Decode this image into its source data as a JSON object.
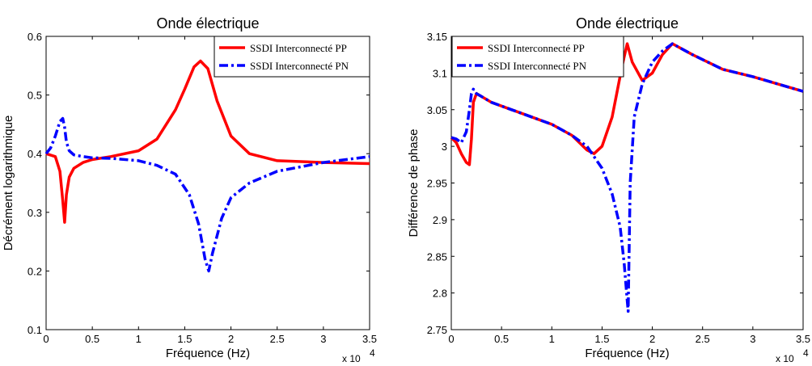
{
  "chart_data": [
    {
      "type": "line",
      "title": "Onde électrique",
      "xlabel": "Fréquence (Hz)",
      "ylabel": "Décrément logarithmique",
      "x_multiplier": "x 10",
      "x_multiplier_exp": "4",
      "xlim": [
        0,
        3.5
      ],
      "ylim": [
        0.1,
        0.6
      ],
      "xticks": [
        0,
        0.5,
        1,
        1.5,
        2,
        2.5,
        3,
        3.5
      ],
      "xtick_labels": [
        "0",
        "0.5",
        "1",
        "1.5",
        "2",
        "2.5",
        "3",
        "3.5"
      ],
      "yticks": [
        0.1,
        0.2,
        0.3,
        0.4,
        0.5,
        0.6
      ],
      "ytick_labels": [
        "0.1",
        "0.2",
        "0.3",
        "0.4",
        "0.5",
        "0.6"
      ],
      "legend_position": "top-right",
      "series": [
        {
          "name": "SSDI Interconnecté PP",
          "color": "#ff0000",
          "style": "solid",
          "x": [
            0,
            0.1,
            0.15,
            0.18,
            0.2,
            0.22,
            0.25,
            0.3,
            0.4,
            0.5,
            0.7,
            1.0,
            1.2,
            1.4,
            1.5,
            1.6,
            1.67,
            1.75,
            1.85,
            2.0,
            2.2,
            2.5,
            3.0,
            3.5
          ],
          "y": [
            0.4,
            0.395,
            0.37,
            0.32,
            0.283,
            0.33,
            0.36,
            0.375,
            0.385,
            0.39,
            0.395,
            0.405,
            0.425,
            0.475,
            0.51,
            0.548,
            0.558,
            0.545,
            0.49,
            0.43,
            0.4,
            0.388,
            0.385,
            0.383
          ]
        },
        {
          "name": "SSDI Interconnecté PN",
          "color": "#0000ff",
          "style": "dashdot",
          "x": [
            0,
            0.05,
            0.1,
            0.15,
            0.18,
            0.2,
            0.22,
            0.25,
            0.3,
            0.4,
            0.5,
            0.7,
            1.0,
            1.2,
            1.4,
            1.55,
            1.65,
            1.72,
            1.76,
            1.8,
            1.9,
            2.0,
            2.2,
            2.5,
            3.0,
            3.5
          ],
          "y": [
            0.4,
            0.41,
            0.43,
            0.455,
            0.46,
            0.445,
            0.42,
            0.405,
            0.398,
            0.395,
            0.393,
            0.392,
            0.388,
            0.38,
            0.365,
            0.33,
            0.28,
            0.22,
            0.2,
            0.23,
            0.29,
            0.325,
            0.35,
            0.37,
            0.385,
            0.395
          ]
        }
      ]
    },
    {
      "type": "line",
      "title": "Onde électrique",
      "xlabel": "Fréquence (Hz)",
      "ylabel": "Différence de phase",
      "x_multiplier": "x 10",
      "x_multiplier_exp": "4",
      "xlim": [
        0,
        3.5
      ],
      "ylim": [
        2.75,
        3.15
      ],
      "xticks": [
        0,
        0.5,
        1,
        1.5,
        2,
        2.5,
        3,
        3.5
      ],
      "xtick_labels": [
        "0",
        "0.5",
        "1",
        "1.5",
        "2",
        "2.5",
        "3",
        "3.5"
      ],
      "yticks": [
        2.75,
        2.8,
        2.85,
        2.9,
        2.95,
        3.0,
        3.05,
        3.1,
        3.15
      ],
      "ytick_labels": [
        "2.75",
        "2.8",
        "2.85",
        "2.9",
        "2.95",
        "3",
        "3.05",
        "3.1",
        "3.15"
      ],
      "legend_position": "top-left",
      "series": [
        {
          "name": "SSDI Interconnecté PP",
          "color": "#ff0000",
          "style": "solid",
          "x": [
            0,
            0.05,
            0.1,
            0.15,
            0.18,
            0.2,
            0.22,
            0.25,
            0.3,
            0.4,
            0.6,
            0.8,
            1.0,
            1.2,
            1.35,
            1.42,
            1.5,
            1.6,
            1.7,
            1.75,
            1.8,
            1.9,
            2.0,
            2.1,
            2.2,
            2.4,
            2.7,
            3.0,
            3.3,
            3.5
          ],
          "y": [
            3.012,
            3.005,
            2.99,
            2.978,
            2.975,
            3.01,
            3.06,
            3.072,
            3.068,
            3.06,
            3.05,
            3.04,
            3.03,
            3.015,
            2.995,
            2.99,
            3.0,
            3.04,
            3.11,
            3.14,
            3.115,
            3.09,
            3.1,
            3.125,
            3.14,
            3.125,
            3.105,
            3.095,
            3.083,
            3.075
          ]
        },
        {
          "name": "SSDI Interconnecté PN",
          "color": "#0000ff",
          "style": "dashdot",
          "x": [
            0,
            0.05,
            0.1,
            0.15,
            0.18,
            0.2,
            0.22,
            0.25,
            0.3,
            0.4,
            0.6,
            0.8,
            1.0,
            1.2,
            1.35,
            1.5,
            1.6,
            1.68,
            1.72,
            1.75,
            1.76,
            1.78,
            1.82,
            1.9,
            2.0,
            2.1,
            2.2,
            2.4,
            2.7,
            3.0,
            3.3,
            3.5
          ],
          "y": [
            3.012,
            3.01,
            3.005,
            3.02,
            3.05,
            3.072,
            3.078,
            3.072,
            3.068,
            3.06,
            3.05,
            3.04,
            3.03,
            3.015,
            3.0,
            2.97,
            2.935,
            2.89,
            2.84,
            2.79,
            2.775,
            2.95,
            3.04,
            3.085,
            3.115,
            3.13,
            3.14,
            3.125,
            3.105,
            3.095,
            3.083,
            3.075
          ]
        }
      ]
    }
  ]
}
